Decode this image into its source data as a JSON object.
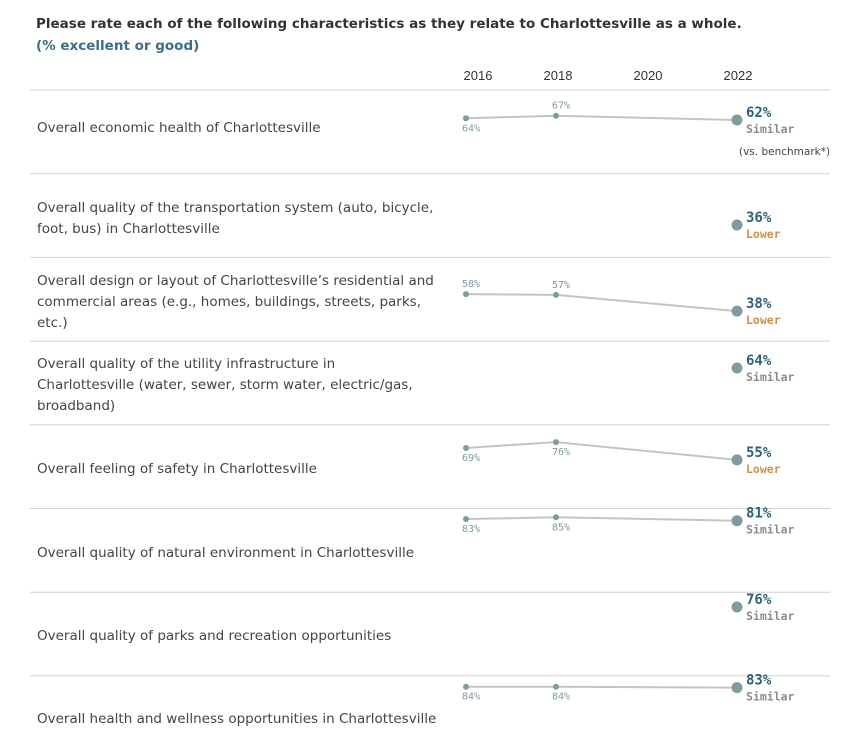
{
  "title": "Please rate each of the following characteristics as they relate to Charlottesville as a whole.",
  "subtitle": "(% excellent or good)",
  "colors": {
    "line": "#c4c4c4",
    "point": "#7f9aa0",
    "value_text": "#2e6277",
    "similar": "#8c8c8c",
    "lower": "#c8924a",
    "divider": "#d0d0d0"
  },
  "chart_data": {
    "type": "line",
    "x": [
      "2016",
      "2018",
      "2020",
      "2022"
    ],
    "benchmark_note": "(vs. benchmark*)",
    "rows": [
      {
        "label": "Overall economic health of Charlottesville",
        "values": [
          64,
          67,
          null,
          62
        ],
        "labels": [
          "64%",
          "67%",
          null,
          "62%"
        ],
        "comparison": "Similar"
      },
      {
        "label": "Overall quality of the transportation system (auto, bicycle, foot, bus) in Charlottesville",
        "values": [
          null,
          null,
          null,
          36
        ],
        "labels": [
          null,
          null,
          null,
          "36%"
        ],
        "comparison": "Lower"
      },
      {
        "label": "Overall design or layout of Charlottesville’s residential and commercial areas (e.g., homes, buildings, streets, parks, etc.)",
        "values": [
          58,
          57,
          null,
          38
        ],
        "labels": [
          "58%",
          "57%",
          null,
          "38%"
        ],
        "comparison": "Lower"
      },
      {
        "label": "Overall quality of the utility infrastructure in Charlottesville (water, sewer, storm water, electric/gas, broadband)",
        "values": [
          null,
          null,
          null,
          64
        ],
        "labels": [
          null,
          null,
          null,
          "64%"
        ],
        "comparison": "Similar"
      },
      {
        "label": "Overall feeling of safety in Charlottesville",
        "values": [
          69,
          76,
          null,
          55
        ],
        "labels": [
          "69%",
          "76%",
          null,
          "55%"
        ],
        "comparison": "Lower"
      },
      {
        "label": "Overall quality of natural environment in Charlottesville",
        "values": [
          83,
          85,
          null,
          81
        ],
        "labels": [
          "83%",
          "85%",
          null,
          "81%"
        ],
        "comparison": "Similar"
      },
      {
        "label": "Overall quality of parks and recreation opportunities",
        "values": [
          null,
          null,
          null,
          76
        ],
        "labels": [
          null,
          null,
          null,
          "76%"
        ],
        "comparison": "Similar"
      },
      {
        "label": "Overall health and wellness opportunities in Charlottesville",
        "values": [
          84,
          84,
          null,
          83
        ],
        "labels": [
          "84%",
          "84%",
          null,
          "83%"
        ],
        "comparison": "Similar"
      }
    ]
  }
}
